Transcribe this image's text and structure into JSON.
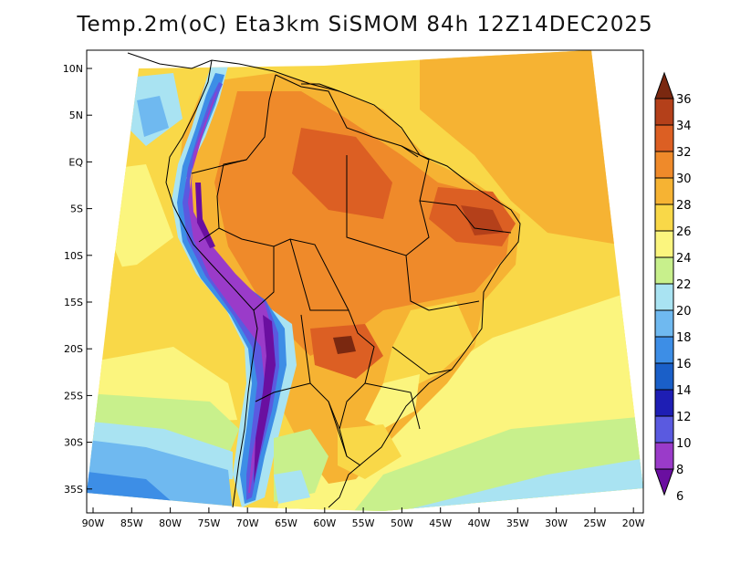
{
  "title": "Temp.2m(oC) Eta3km SiSMOM 84h 12Z14DEC2025",
  "axes": {
    "lat_labels": [
      "10N",
      "5N",
      "EQ",
      "5S",
      "10S",
      "15S",
      "20S",
      "25S",
      "30S",
      "35S"
    ],
    "lon_labels": [
      "90W",
      "85W",
      "80W",
      "75W",
      "70W",
      "65W",
      "60W",
      "55W",
      "50W",
      "45W",
      "40W",
      "35W",
      "30W",
      "25W",
      "20W"
    ]
  },
  "colorbar": {
    "labels": [
      "36",
      "34",
      "32",
      "30",
      "28",
      "26",
      "24",
      "22",
      "20",
      "18",
      "16",
      "14",
      "12",
      "10",
      "8",
      "6"
    ],
    "colors": {
      "c6_8": "#6a0fa0",
      "c8_10": "#9a3bc9",
      "c10_12": "#5a5ae0",
      "c12_14": "#1e1eb4",
      "c14_16": "#1a5fc8",
      "c16_18": "#3d8ee6",
      "c18_20": "#6fb9f0",
      "c20_22": "#a9e3f2",
      "c22_24": "#c8f08c",
      "c24_26": "#fbf57e",
      "c26_28": "#f9d848",
      "c28_30": "#f6b333",
      "c30_32": "#ef8a2a",
      "c32_34": "#dc5f23",
      "c34_36": "#b4401a",
      "c36_up": "#7a2810"
    }
  }
}
